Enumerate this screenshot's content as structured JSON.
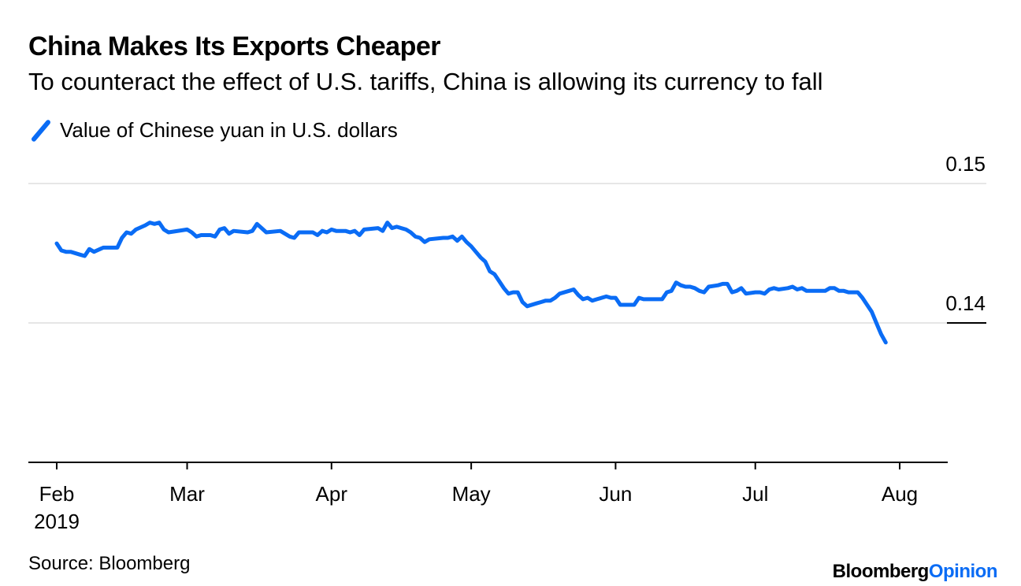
{
  "chart_data": {
    "type": "line",
    "title": "China Makes Its Exports Cheaper",
    "subtitle": "To counteract the effect of U.S. tariffs, China is allowing its currency to fall",
    "legend": "Value of Chinese yuan in U.S. dollars",
    "line_color": "#0a6cf5",
    "ylim": [
      0.13,
      0.15
    ],
    "yticks": [
      {
        "value": 0.15,
        "label": "0.15"
      },
      {
        "value": 0.14,
        "label": "0.14"
      }
    ],
    "xlim": [
      0,
      188
    ],
    "xticks": [
      {
        "day": 0,
        "label": "Feb",
        "sublabel": "2019"
      },
      {
        "day": 28,
        "label": "Mar",
        "sublabel": ""
      },
      {
        "day": 59,
        "label": "Apr",
        "sublabel": ""
      },
      {
        "day": 89,
        "label": "May",
        "sublabel": ""
      },
      {
        "day": 120,
        "label": "Jun",
        "sublabel": ""
      },
      {
        "day": 150,
        "label": "Jul",
        "sublabel": ""
      },
      {
        "day": 181,
        "label": "Aug",
        "sublabel": ""
      }
    ],
    "series": [
      {
        "name": "Value of Chinese yuan in U.S. dollars",
        "points": [
          [
            0,
            0.1457
          ],
          [
            1,
            0.1452
          ],
          [
            2,
            0.1451
          ],
          [
            3,
            0.1451
          ],
          [
            5,
            0.1449
          ],
          [
            6,
            0.1448
          ],
          [
            7,
            0.1453
          ],
          [
            8,
            0.1451
          ],
          [
            10,
            0.1454
          ],
          [
            13,
            0.1454
          ],
          [
            14,
            0.1461
          ],
          [
            15,
            0.1465
          ],
          [
            16,
            0.1464
          ],
          [
            17,
            0.1467
          ],
          [
            19,
            0.147
          ],
          [
            20,
            0.1472
          ],
          [
            21,
            0.1471
          ],
          [
            22,
            0.1472
          ],
          [
            23,
            0.1467
          ],
          [
            24,
            0.1465
          ],
          [
            28,
            0.1467
          ],
          [
            29,
            0.1465
          ],
          [
            30,
            0.1462
          ],
          [
            31,
            0.1463
          ],
          [
            33,
            0.1463
          ],
          [
            34,
            0.1462
          ],
          [
            35,
            0.1467
          ],
          [
            36,
            0.1468
          ],
          [
            37,
            0.1464
          ],
          [
            38,
            0.1466
          ],
          [
            41,
            0.1465
          ],
          [
            42,
            0.1466
          ],
          [
            43,
            0.1471
          ],
          [
            44,
            0.1468
          ],
          [
            45,
            0.1465
          ],
          [
            48,
            0.1466
          ],
          [
            49,
            0.1464
          ],
          [
            50,
            0.1462
          ],
          [
            51,
            0.1461
          ],
          [
            52,
            0.1465
          ],
          [
            55,
            0.1465
          ],
          [
            56,
            0.1463
          ],
          [
            57,
            0.1466
          ],
          [
            58,
            0.1465
          ],
          [
            59,
            0.1467
          ],
          [
            60,
            0.1466
          ],
          [
            62,
            0.1466
          ],
          [
            63,
            0.1465
          ],
          [
            64,
            0.1466
          ],
          [
            65,
            0.1463
          ],
          [
            66,
            0.1467
          ],
          [
            69,
            0.1468
          ],
          [
            70,
            0.1466
          ],
          [
            71,
            0.1472
          ],
          [
            72,
            0.1468
          ],
          [
            73,
            0.1469
          ],
          [
            75,
            0.1467
          ],
          [
            76,
            0.1465
          ],
          [
            77,
            0.1462
          ],
          [
            78,
            0.1461
          ],
          [
            79,
            0.1458
          ],
          [
            80,
            0.146
          ],
          [
            83,
            0.1461
          ],
          [
            84,
            0.1461
          ],
          [
            85,
            0.1462
          ],
          [
            86,
            0.1459
          ],
          [
            87,
            0.1462
          ],
          [
            88,
            0.1458
          ],
          [
            89,
            0.1455
          ],
          [
            90,
            0.1451
          ],
          [
            91,
            0.1447
          ],
          [
            92,
            0.1444
          ],
          [
            93,
            0.1437
          ],
          [
            94,
            0.1435
          ],
          [
            95,
            0.143
          ],
          [
            96,
            0.1425
          ],
          [
            97,
            0.1421
          ],
          [
            98,
            0.1422
          ],
          [
            99,
            0.1422
          ],
          [
            100,
            0.1415
          ],
          [
            101,
            0.1412
          ],
          [
            103,
            0.1414
          ],
          [
            104,
            0.1415
          ],
          [
            105,
            0.1416
          ],
          [
            106,
            0.1416
          ],
          [
            107,
            0.1418
          ],
          [
            108,
            0.1421
          ],
          [
            110,
            0.1423
          ],
          [
            111,
            0.1424
          ],
          [
            112,
            0.142
          ],
          [
            113,
            0.1417
          ],
          [
            114,
            0.1418
          ],
          [
            115,
            0.1416
          ],
          [
            116,
            0.1417
          ],
          [
            118,
            0.1419
          ],
          [
            119,
            0.1418
          ],
          [
            120,
            0.1418
          ],
          [
            121,
            0.1413
          ],
          [
            122,
            0.1413
          ],
          [
            124,
            0.1413
          ],
          [
            125,
            0.1418
          ],
          [
            126,
            0.1417
          ],
          [
            127,
            0.1417
          ],
          [
            129,
            0.1417
          ],
          [
            130,
            0.1417
          ],
          [
            131,
            0.1422
          ],
          [
            132,
            0.1423
          ],
          [
            133,
            0.1429
          ],
          [
            134,
            0.1427
          ],
          [
            135,
            0.1426
          ],
          [
            136,
            0.1426
          ],
          [
            137,
            0.1425
          ],
          [
            138,
            0.1423
          ],
          [
            139,
            0.1422
          ],
          [
            140,
            0.1426
          ],
          [
            142,
            0.1427
          ],
          [
            143,
            0.1428
          ],
          [
            144,
            0.1428
          ],
          [
            145,
            0.1422
          ],
          [
            146,
            0.1423
          ],
          [
            147,
            0.1425
          ],
          [
            148,
            0.1421
          ],
          [
            150,
            0.1422
          ],
          [
            151,
            0.1422
          ],
          [
            152,
            0.1421
          ],
          [
            153,
            0.1424
          ],
          [
            154,
            0.1425
          ],
          [
            155,
            0.1424
          ],
          [
            157,
            0.1425
          ],
          [
            158,
            0.1426
          ],
          [
            159,
            0.1424
          ],
          [
            160,
            0.1425
          ],
          [
            161,
            0.1423
          ],
          [
            162,
            0.1423
          ],
          [
            163,
            0.1423
          ],
          [
            165,
            0.1423
          ],
          [
            166,
            0.1425
          ],
          [
            167,
            0.1425
          ],
          [
            168,
            0.1423
          ],
          [
            169,
            0.1423
          ],
          [
            170,
            0.1422
          ],
          [
            171,
            0.1422
          ],
          [
            172,
            0.1422
          ],
          [
            173,
            0.1418
          ],
          [
            174,
            0.1413
          ],
          [
            175,
            0.1408
          ],
          [
            176,
            0.14
          ],
          [
            177,
            0.1392
          ],
          [
            178,
            0.1386
          ]
        ]
      }
    ]
  },
  "source": "Source: Bloomberg",
  "branding": {
    "part1": "Bloomberg",
    "part2": "Opinion"
  }
}
